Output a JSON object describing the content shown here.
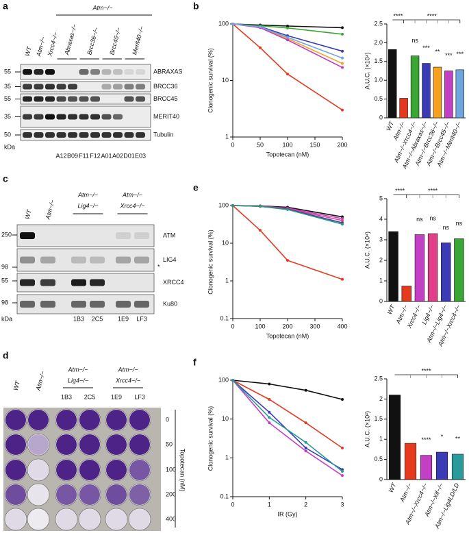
{
  "chart_data": [
    {
      "type": "line",
      "panel": "b",
      "ylabel": "Clonogenic survival (%)",
      "xlabel": "Topotecan (nM)",
      "log_y": true,
      "x": [
        0,
        50,
        100,
        200
      ],
      "xlim": [
        0,
        200
      ],
      "xticks": [
        0,
        50,
        100,
        150,
        200
      ],
      "ylim": [
        1,
        100
      ],
      "yticks": [
        1,
        10,
        100
      ],
      "series": [
        {
          "color": "#111111",
          "values": [
            100,
            96,
            92,
            86
          ]
        },
        {
          "color": "#e53a1e",
          "values": [
            100,
            38,
            13,
            3
          ]
        },
        {
          "color": "#3aa635",
          "values": [
            100,
            93,
            85,
            66
          ]
        },
        {
          "color": "#3b3bb5",
          "values": [
            100,
            90,
            62,
            33
          ]
        },
        {
          "color": "#f5a01e",
          "values": [
            100,
            88,
            55,
            20
          ]
        },
        {
          "color": "#c33fc3",
          "values": [
            100,
            86,
            52,
            17
          ]
        },
        {
          "color": "#6ea6dd",
          "values": [
            100,
            89,
            58,
            25
          ]
        }
      ]
    },
    {
      "type": "bar",
      "ylabel": "A.U.C. (×10⁴)",
      "ylim": [
        0,
        2.5
      ],
      "yticks": [
        0,
        0.5,
        {
          "value": 1,
          "label": "1.0"
        },
        1.5,
        {
          "value": 2,
          "label": "2.0"
        },
        2.5
      ],
      "categories": [
        "WT",
        "Atm−/−",
        "Atm−/−Xrcc4−/−",
        "Atm−/−Abraxas−/−",
        "Atm−/−Brcc36−/−",
        "Atm−/−Brcc45−/−",
        "Atm−/−Merit40−/−"
      ],
      "values": [
        1.82,
        0.52,
        1.65,
        1.45,
        1.35,
        1.25,
        1.28
      ],
      "colors": [
        "#111111",
        "#e53a1e",
        "#3aa635",
        "#3b3bb5",
        "#f5a01e",
        "#c33fc3",
        "#6ea6dd"
      ],
      "significance": [
        null,
        null,
        "ns",
        "***",
        "**",
        "***",
        "***"
      ],
      "brackets": [
        "****",
        "****"
      ]
    },
    {
      "type": "line",
      "panel": "e",
      "ylabel": "Clonogenic survival (%)",
      "xlabel": "Topotecan (nM)",
      "log_y": true,
      "x": [
        0,
        100,
        200,
        400
      ],
      "xlim": [
        0,
        400
      ],
      "xticks": [
        0,
        100,
        200,
        300,
        400
      ],
      "ylim": [
        0.1,
        100
      ],
      "yticks": [
        0.1,
        1,
        10,
        100
      ],
      "series": [
        {
          "color": "#111111",
          "values": [
            100,
            98,
            90,
            50
          ]
        },
        {
          "color": "#e53a1e",
          "values": [
            100,
            22,
            3.5,
            1.1
          ]
        },
        {
          "color": "#c33fc3",
          "values": [
            100,
            97,
            85,
            45
          ]
        },
        {
          "color": "#e0408a",
          "values": [
            100,
            96,
            82,
            40
          ]
        },
        {
          "color": "#3b3bb5",
          "values": [
            100,
            95,
            80,
            35
          ]
        },
        {
          "color": "#2a9a7a",
          "values": [
            100,
            95,
            78,
            32
          ]
        }
      ]
    },
    {
      "type": "bar",
      "ylabel": "A.U.C. (×10⁴)",
      "ylim": [
        0,
        5
      ],
      "yticks": [
        0,
        1,
        2,
        3,
        4,
        5
      ],
      "categories": [
        "WT",
        "Atm−/−",
        "Xrcc4−/−",
        "Lig4−/−",
        "Atm−/−Lig4−/−",
        "Atm−/−Xrcc4−/−"
      ],
      "values": [
        3.4,
        0.75,
        3.25,
        3.3,
        2.85,
        3.05
      ],
      "colors": [
        "#111111",
        "#e53a1e",
        "#c33fc3",
        "#e0408a",
        "#3b3bb5",
        "#3aa635"
      ],
      "significance": [
        null,
        null,
        "ns",
        "ns",
        "ns",
        "ns"
      ],
      "brackets": [
        "****",
        "****"
      ]
    },
    {
      "type": "line",
      "panel": "f",
      "ylabel": "Clonogenic survival (%)",
      "xlabel": "IR (Gy)",
      "log_y": true,
      "x": [
        0,
        1,
        2,
        3
      ],
      "xlim": [
        0,
        3
      ],
      "xticks": [
        0,
        1,
        2,
        3
      ],
      "ylim": [
        0.1,
        100
      ],
      "yticks": [
        0.1,
        1,
        10,
        100
      ],
      "series": [
        {
          "color": "#111111",
          "values": [
            100,
            80,
            55,
            32
          ]
        },
        {
          "color": "#e53a1e",
          "values": [
            100,
            32,
            8,
            1.8
          ]
        },
        {
          "color": "#c33fc3",
          "values": [
            100,
            8,
            1.5,
            0.35
          ]
        },
        {
          "color": "#3b3bb5",
          "values": [
            100,
            15,
            1.8,
            0.5
          ]
        },
        {
          "color": "#2a9a9a",
          "values": [
            100,
            11,
            2.5,
            0.45
          ]
        }
      ]
    },
    {
      "type": "bar",
      "ylabel": "A.U.C. (×10²)",
      "ylim": [
        0,
        2.5
      ],
      "yticks": [
        0,
        0.5,
        1,
        1.5,
        2,
        2.5
      ],
      "categories": [
        "WT",
        "Atm−/−",
        "Atm−/−Xrcc4−/−",
        "Atm−/−Xlf−/−",
        "Atm−/−Lig4LD/LD"
      ],
      "values": [
        2.1,
        0.9,
        0.6,
        0.68,
        0.63
      ],
      "colors": [
        "#111111",
        "#e53a1e",
        "#c33fc3",
        "#3b3bb5",
        "#2a9a9a"
      ],
      "significance": [
        null,
        null,
        "****",
        "*",
        "**"
      ],
      "brackets": [
        "****"
      ]
    }
  ],
  "blots": {
    "a": {
      "panel": "a",
      "header": "Atm−/−",
      "lanes": [
        "WT",
        "Atm−/−",
        "Xrcc4−/−"
      ],
      "groups": [
        "Abraxas−/−",
        "Brcc36−/−",
        "Brcc45−/−",
        "Merit40−/−"
      ],
      "clones": [
        "A12",
        "B09",
        "F11",
        "F12",
        "A01",
        "A02",
        "D01",
        "E03"
      ],
      "markers": [
        55,
        35,
        55,
        35,
        50
      ],
      "unit": "kDa",
      "proteins": [
        "ABRAXAS",
        "BRCC36",
        "BRCC45",
        "MERIT40",
        "Tubulin"
      ]
    },
    "c": {
      "panel": "c",
      "lanes": [
        "WT",
        "Atm−/−"
      ],
      "groups": [
        [
          "Atm−/−",
          "Lig4−/−"
        ],
        [
          "Atm−/−",
          "Xrcc4−/−"
        ]
      ],
      "clones": [
        "1B3",
        "2C5",
        "1E9",
        "LF3"
      ],
      "markers": [
        250,
        98,
        55,
        98
      ],
      "unit": "kDa",
      "proteins": [
        "ATM",
        "LIG4",
        "XRCC4",
        "Ku80"
      ],
      "star": "*"
    },
    "d": {
      "panel": "d",
      "lanes": [
        "WT",
        "Atm−/−"
      ],
      "groups": [
        [
          "Atm−/−",
          "Lig4−/−"
        ],
        [
          "Atm−/−",
          "Xrcc4−/−"
        ]
      ],
      "clones": [
        "1B3",
        "2C5",
        "1E9",
        "LF3"
      ],
      "doses": [
        0,
        50,
        100,
        200,
        400
      ],
      "dose_label": "Topotecan (nM)"
    }
  }
}
